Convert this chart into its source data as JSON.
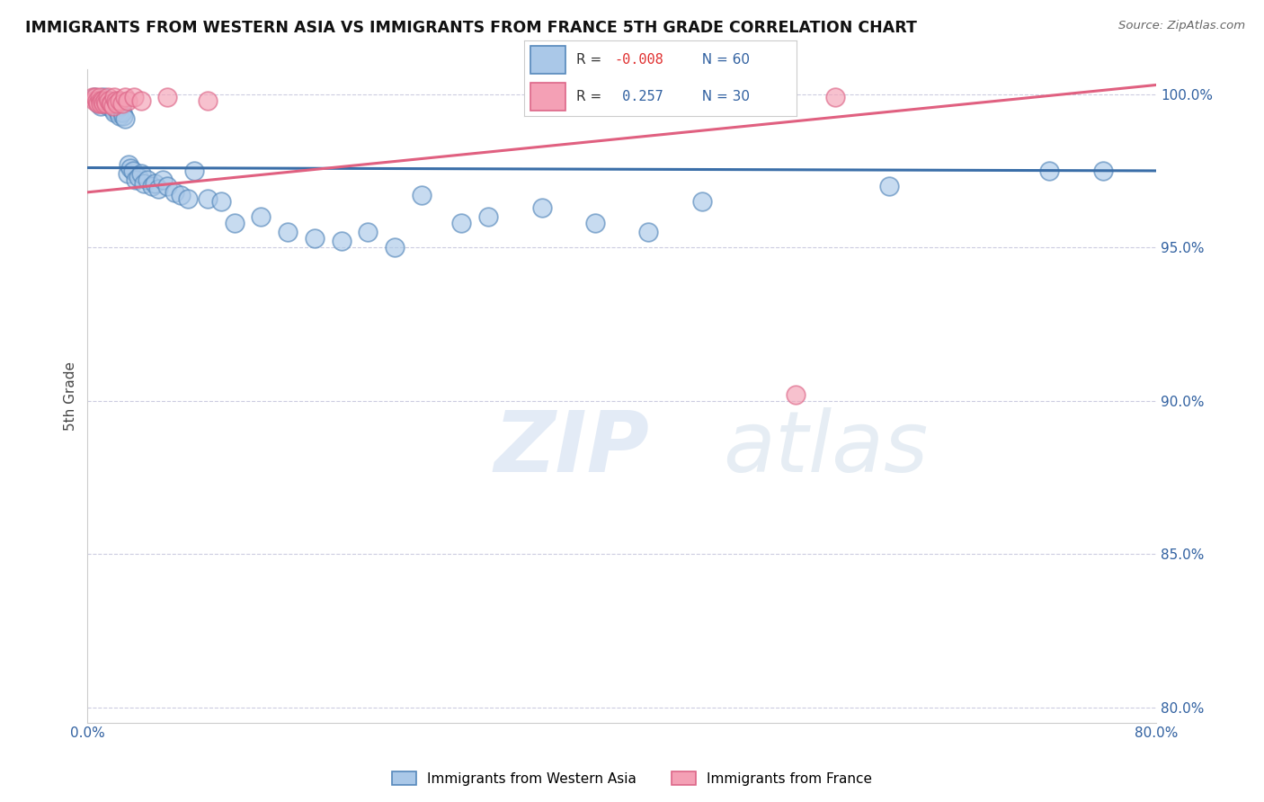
{
  "title": "IMMIGRANTS FROM WESTERN ASIA VS IMMIGRANTS FROM FRANCE 5TH GRADE CORRELATION CHART",
  "source": "Source: ZipAtlas.com",
  "xlabel_blue": "Immigrants from Western Asia",
  "xlabel_pink": "Immigrants from France",
  "ylabel": "5th Grade",
  "xlim": [
    0.0,
    0.8
  ],
  "ylim": [
    0.795,
    1.008
  ],
  "blue_R": -0.008,
  "blue_N": 60,
  "pink_R": 0.257,
  "pink_N": 30,
  "yticks": [
    0.8,
    0.85,
    0.9,
    0.95,
    1.0
  ],
  "ytick_labels": [
    "80.0%",
    "85.0%",
    "90.0%",
    "95.0%",
    "100.0%"
  ],
  "xticks": [
    0.0,
    0.1,
    0.2,
    0.3,
    0.4,
    0.5,
    0.6,
    0.7,
    0.8
  ],
  "xtick_labels": [
    "0.0%",
    "",
    "",
    "",
    "",
    "",
    "",
    "",
    "80.0%"
  ],
  "blue_color": "#aac8e8",
  "pink_color": "#f4a0b5",
  "blue_edge_color": "#5588bb",
  "pink_edge_color": "#dd6688",
  "blue_line_color": "#3a6ea8",
  "pink_line_color": "#e06080",
  "watermark_zip": "ZIP",
  "watermark_atlas": "atlas",
  "blue_scatter_x": [
    0.005,
    0.007,
    0.008,
    0.01,
    0.01,
    0.012,
    0.013,
    0.015,
    0.015,
    0.016,
    0.017,
    0.018,
    0.019,
    0.02,
    0.02,
    0.021,
    0.022,
    0.023,
    0.024,
    0.025,
    0.026,
    0.027,
    0.028,
    0.03,
    0.031,
    0.032,
    0.034,
    0.036,
    0.038,
    0.04,
    0.042,
    0.045,
    0.048,
    0.05,
    0.053,
    0.056,
    0.06,
    0.065,
    0.07,
    0.075,
    0.08,
    0.09,
    0.1,
    0.11,
    0.13,
    0.15,
    0.17,
    0.19,
    0.21,
    0.23,
    0.25,
    0.28,
    0.3,
    0.34,
    0.38,
    0.42,
    0.46,
    0.6,
    0.72,
    0.76
  ],
  "blue_scatter_y": [
    0.999,
    0.998,
    0.997,
    0.998,
    0.996,
    0.999,
    0.997,
    0.998,
    0.996,
    0.997,
    0.997,
    0.996,
    0.995,
    0.996,
    0.994,
    0.997,
    0.995,
    0.994,
    0.993,
    0.996,
    0.994,
    0.993,
    0.992,
    0.974,
    0.977,
    0.976,
    0.975,
    0.972,
    0.973,
    0.974,
    0.971,
    0.972,
    0.97,
    0.971,
    0.969,
    0.972,
    0.97,
    0.968,
    0.967,
    0.966,
    0.975,
    0.966,
    0.965,
    0.958,
    0.96,
    0.955,
    0.953,
    0.952,
    0.955,
    0.95,
    0.967,
    0.958,
    0.96,
    0.963,
    0.958,
    0.955,
    0.965,
    0.97,
    0.975,
    0.975
  ],
  "pink_scatter_x": [
    0.004,
    0.005,
    0.006,
    0.007,
    0.008,
    0.009,
    0.01,
    0.01,
    0.011,
    0.012,
    0.013,
    0.014,
    0.015,
    0.016,
    0.017,
    0.018,
    0.019,
    0.02,
    0.021,
    0.022,
    0.024,
    0.026,
    0.028,
    0.03,
    0.035,
    0.04,
    0.06,
    0.09,
    0.53,
    0.56
  ],
  "pink_scatter_y": [
    0.999,
    0.998,
    0.999,
    0.998,
    0.997,
    0.999,
    0.998,
    0.997,
    0.998,
    0.997,
    0.998,
    0.997,
    0.999,
    0.998,
    0.997,
    0.997,
    0.996,
    0.999,
    0.998,
    0.997,
    0.998,
    0.997,
    0.999,
    0.998,
    0.999,
    0.998,
    0.999,
    0.998,
    0.902,
    0.999
  ],
  "blue_trend_x": [
    0.0,
    0.8
  ],
  "blue_trend_y": [
    0.976,
    0.975
  ],
  "pink_trend_x": [
    0.0,
    0.8
  ],
  "pink_trend_y": [
    0.968,
    1.003
  ]
}
